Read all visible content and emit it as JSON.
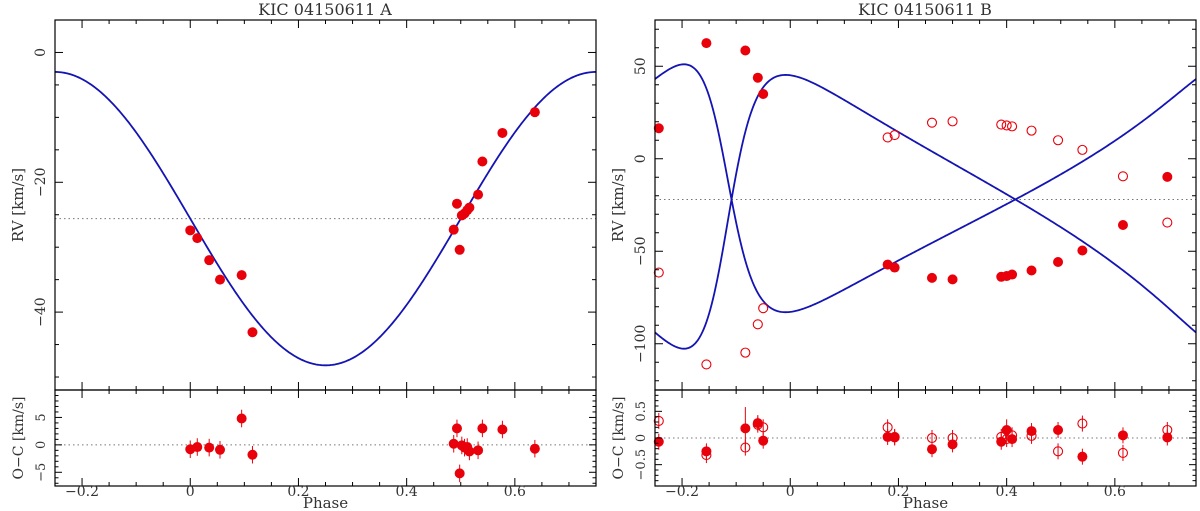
{
  "chart_data": [
    {
      "type": "scatter",
      "title": "KIC 04150611 A",
      "xlabel": "Phase",
      "ylabel": "RV [km/s]",
      "ylabel_resid": "O−C [km/s]",
      "xlim": [
        -0.25,
        0.75
      ],
      "ylim": [
        -52,
        5
      ],
      "ylim_resid": [
        -7.5,
        10
      ],
      "xticks": [
        -0.2,
        0,
        0.2,
        0.4,
        0.6
      ],
      "xtick_labels": [
        "−0.2",
        "0",
        "0.2",
        "0.4",
        "0.6"
      ],
      "yticks": [
        0,
        -20,
        -40
      ],
      "ytick_labels": [
        "0",
        "−20",
        "−40"
      ],
      "yticks_resid": [
        5,
        0,
        -5
      ],
      "ytick_labels_resid": [
        "5",
        "0",
        "−5"
      ],
      "gamma": -25.6,
      "model": {
        "name": "orbit fit",
        "K": 22.6,
        "T0_phase": 0.25,
        "color": "#1414b4"
      },
      "series": [
        {
          "name": "RV",
          "color": "#e8000b",
          "marker": "filled",
          "x": [
            0.0,
            0.013,
            0.035,
            0.055,
            0.095,
            0.115,
            0.487,
            0.493,
            0.498,
            0.502,
            0.507,
            0.512,
            0.516,
            0.532,
            0.54,
            0.577,
            0.637
          ],
          "y": [
            -27.4,
            -28.6,
            -32.0,
            -35.0,
            -34.3,
            -43.1,
            -27.3,
            -23.3,
            -30.4,
            -25.1,
            -24.8,
            -24.3,
            -23.9,
            -21.9,
            -16.8,
            -12.4,
            -9.2
          ],
          "resid": [
            -0.8,
            -0.4,
            -0.5,
            -0.9,
            4.8,
            -1.8,
            0.2,
            3.0,
            -5.2,
            -0.1,
            -0.5,
            -0.4,
            -1.2,
            -1.0,
            3.0,
            2.8,
            -0.7
          ],
          "resid_err": [
            1.6,
            1.6,
            1.6,
            1.6,
            1.6,
            1.6,
            1.6,
            1.6,
            1.6,
            1.6,
            1.6,
            1.6,
            1.6,
            1.6,
            1.6,
            1.6,
            1.6
          ]
        }
      ]
    },
    {
      "type": "scatter",
      "title": "KIC 04150611 B",
      "xlabel": "Phase",
      "ylabel": "RV [km/s]",
      "ylabel_resid": "O−C [km/s]",
      "xlim": [
        -0.25,
        0.75
      ],
      "ylim": [
        -125,
        75
      ],
      "ylim_resid": [
        -0.9,
        0.9
      ],
      "xticks": [
        -0.2,
        0,
        0.2,
        0.4,
        0.6
      ],
      "xtick_labels": [
        "−0.2",
        "0",
        "0.2",
        "0.4",
        "0.6"
      ],
      "yticks": [
        50,
        0,
        -50,
        -100
      ],
      "ytick_labels": [
        "50",
        "0",
        "−50",
        "−100"
      ],
      "yticks_resid": [
        0.5,
        0,
        -0.5
      ],
      "ytick_labels_resid": [
        "0.5",
        "0",
        "−0.5"
      ],
      "gamma": -22,
      "model": {
        "name": "orbit fit",
        "e": 0.52,
        "omega_deg": 80,
        "K1": 67,
        "K2": 74,
        "T0_phase": -0.12,
        "color": "#1414b4"
      },
      "series": [
        {
          "name": "primary",
          "color": "#e8000b",
          "marker": "filled",
          "x": [
            -0.243,
            -0.155,
            -0.083,
            -0.06,
            -0.05,
            0.18,
            0.193,
            0.262,
            0.3,
            0.39,
            0.4,
            0.41,
            0.446,
            0.495,
            0.54,
            0.615,
            0.697
          ],
          "y": [
            16.5,
            62.5,
            58.5,
            43.8,
            35.0,
            -57.2,
            -58.8,
            -64.4,
            -65.2,
            -63.8,
            -63.4,
            -62.6,
            -60.4,
            -55.8,
            -49.6,
            -35.8,
            -9.8
          ],
          "resid": [
            -0.07,
            -0.25,
            0.18,
            0.28,
            -0.05,
            0.02,
            0.01,
            -0.21,
            -0.12,
            -0.07,
            0.15,
            -0.02,
            0.13,
            0.15,
            -0.35,
            0.05,
            0.01
          ],
          "resid_err": [
            0.15,
            0.15,
            0.4,
            0.15,
            0.15,
            0.15,
            0.15,
            0.15,
            0.15,
            0.15,
            0.2,
            0.15,
            0.15,
            0.15,
            0.15,
            0.15,
            0.15
          ]
        },
        {
          "name": "secondary",
          "color": "#e8000b",
          "marker": "open",
          "x": [
            -0.243,
            -0.155,
            -0.083,
            -0.06,
            -0.05,
            0.18,
            0.193,
            0.262,
            0.3,
            0.39,
            0.4,
            0.41,
            0.446,
            0.495,
            0.54,
            0.615,
            0.697
          ],
          "y": [
            -61.5,
            -111.2,
            -104.8,
            -89.5,
            -80.8,
            11.5,
            12.8,
            19.5,
            20.2,
            18.5,
            18.0,
            17.5,
            15.2,
            10.0,
            4.8,
            -9.5,
            -34.5
          ],
          "resid": [
            0.32,
            -0.32,
            -0.18,
            0.25,
            0.2,
            0.2,
            0.02,
            0.0,
            0.0,
            0.02,
            -0.02,
            0.05,
            0.04,
            -0.25,
            0.27,
            -0.28,
            0.15
          ],
          "resid_err": [
            0.15,
            0.15,
            0.15,
            0.15,
            0.15,
            0.15,
            0.15,
            0.15,
            0.15,
            0.15,
            0.15,
            0.15,
            0.15,
            0.15,
            0.15,
            0.15,
            0.15
          ]
        }
      ]
    }
  ]
}
